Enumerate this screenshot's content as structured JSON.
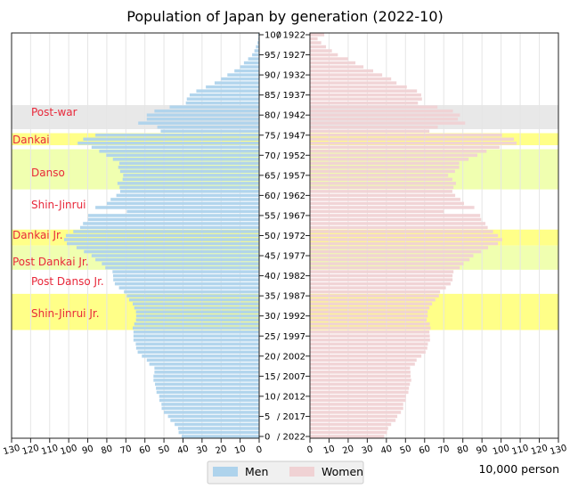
{
  "chart_data": {
    "type": "bar",
    "orientation": "horizontal-pyramid",
    "title": "Population of Japan by generation (2022-10)",
    "unit_label": "10,000 person",
    "xlim": [
      0,
      130
    ],
    "x_ticks": [
      0,
      10,
      20,
      30,
      40,
      50,
      60,
      70,
      80,
      90,
      100,
      110,
      120,
      130
    ],
    "survey_year": 2022,
    "age_ticks": [
      0,
      5,
      10,
      15,
      20,
      25,
      30,
      35,
      40,
      45,
      50,
      55,
      60,
      65,
      70,
      75,
      80,
      85,
      90,
      95,
      100
    ],
    "age_tick_labels": [
      "0",
      "5",
      "10",
      "15",
      "20",
      "25",
      "30",
      "35",
      "40",
      "45",
      "50",
      "55",
      "60",
      "65",
      "70",
      "75",
      "80",
      "85",
      "90",
      "95",
      "100"
    ],
    "year_tick_labels": [
      "/ 2022",
      "/ 2017",
      "/ 2012",
      "/ 2007",
      "/ 2002",
      "/ 1997",
      "/ 1992",
      "/ 1987",
      "/ 1982",
      "/ 1977",
      "/ 1972",
      "/ 1967",
      "/ 1962",
      "/ 1957",
      "/ 1952",
      "/ 1947",
      "/ 1942",
      "/ 1937",
      "/ 1932",
      "/ 1927",
      "/ 1922"
    ],
    "grid": true,
    "legend_position": "bottom",
    "series": [
      {
        "name": "Men",
        "color": "#aed3ec",
        "values": [
          40.7,
          42.3,
          42.6,
          44.4,
          46.6,
          47.9,
          50,
          51.2,
          51.3,
          52.4,
          52.5,
          53.9,
          54.2,
          54.7,
          55.5,
          55.5,
          55,
          55,
          57.7,
          59,
          61.6,
          63.8,
          64.6,
          64.8,
          66,
          66,
          66,
          66.4,
          65.6,
          64.7,
          64.6,
          64.7,
          65.6,
          66.4,
          68.3,
          69.5,
          71,
          73.6,
          75.8,
          76.6,
          76.7,
          77,
          80.8,
          82.6,
          86,
          88,
          92,
          95.9,
          101,
          102.4,
          101.5,
          97.6,
          94,
          92.5,
          89.9,
          89.8,
          69.5,
          86,
          80,
          78,
          75,
          73,
          73.3,
          74.4,
          71.7,
          71.4,
          73,
          74,
          73.4,
          76.8,
          80.3,
          84,
          88,
          95.3,
          92.4,
          86,
          51.7,
          53.5,
          63.5,
          59,
          59,
          55,
          47,
          38.5,
          38,
          36.5,
          33,
          28,
          23.4,
          20,
          16.7,
          13,
          10,
          8,
          5.8,
          3.7,
          2.5,
          1.7,
          0.9,
          0.5,
          0.5
        ]
      },
      {
        "name": "Women",
        "color": "#f0d2d4",
        "values": [
          38.9,
          40.3,
          40.9,
          42.5,
          44.8,
          45.7,
          47.6,
          48.8,
          48.8,
          50.1,
          50.2,
          51.5,
          51.8,
          52.3,
          53,
          52.7,
          52.6,
          52.4,
          54.9,
          55.8,
          58.3,
          60.5,
          61.4,
          61.7,
          62.8,
          62.7,
          62.5,
          63.1,
          62.7,
          61.1,
          61.6,
          61.6,
          62.5,
          63.9,
          65.6,
          67.5,
          68.1,
          71.1,
          73.6,
          74.6,
          74.6,
          75.1,
          78.4,
          80.4,
          83.5,
          85.5,
          89.6,
          93.2,
          98.4,
          100.6,
          98.4,
          95.8,
          93,
          91.8,
          89.6,
          89.1,
          70.1,
          86,
          80.6,
          78.7,
          76,
          74.5,
          75.1,
          76.4,
          74.5,
          72.3,
          75.9,
          78.1,
          78.1,
          83,
          87.6,
          92.4,
          99.2,
          108.1,
          106.7,
          100.5,
          62.5,
          66.9,
          81.2,
          77.4,
          78.5,
          74.8,
          66.7,
          56.5,
          58.6,
          58.2,
          56,
          50.7,
          45.3,
          42.5,
          37.8,
          33.1,
          28,
          23.8,
          19.9,
          14.6,
          11.5,
          8.4,
          5.9,
          4,
          7.5
        ]
      }
    ],
    "generation_bands": [
      {
        "label": "Post-war",
        "age_from": 77,
        "age_to": 82,
        "color": "#e8e8e8"
      },
      {
        "label": "Dankai",
        "age_from": 73,
        "age_to": 75,
        "color": "#ffff88"
      },
      {
        "label": "Danso",
        "age_from": 62,
        "age_to": 71,
        "color": "#f0ffb0"
      },
      {
        "label": "Shin-Jinrui",
        "age_from": 52,
        "age_to": 61,
        "color": "#ffffff"
      },
      {
        "label": "Dankai Jr.",
        "age_from": 48,
        "age_to": 51,
        "color": "#ffff88"
      },
      {
        "label": "Post Dankai Jr.",
        "age_from": 42,
        "age_to": 47,
        "color": "#f0ffb0"
      },
      {
        "label": "Post Danso Jr.",
        "age_from": 36,
        "age_to": 41,
        "color": "#ffffff"
      },
      {
        "label": "Shin-Jinrui Jr.",
        "age_from": 27,
        "age_to": 35,
        "color": "#ffff88"
      }
    ]
  }
}
